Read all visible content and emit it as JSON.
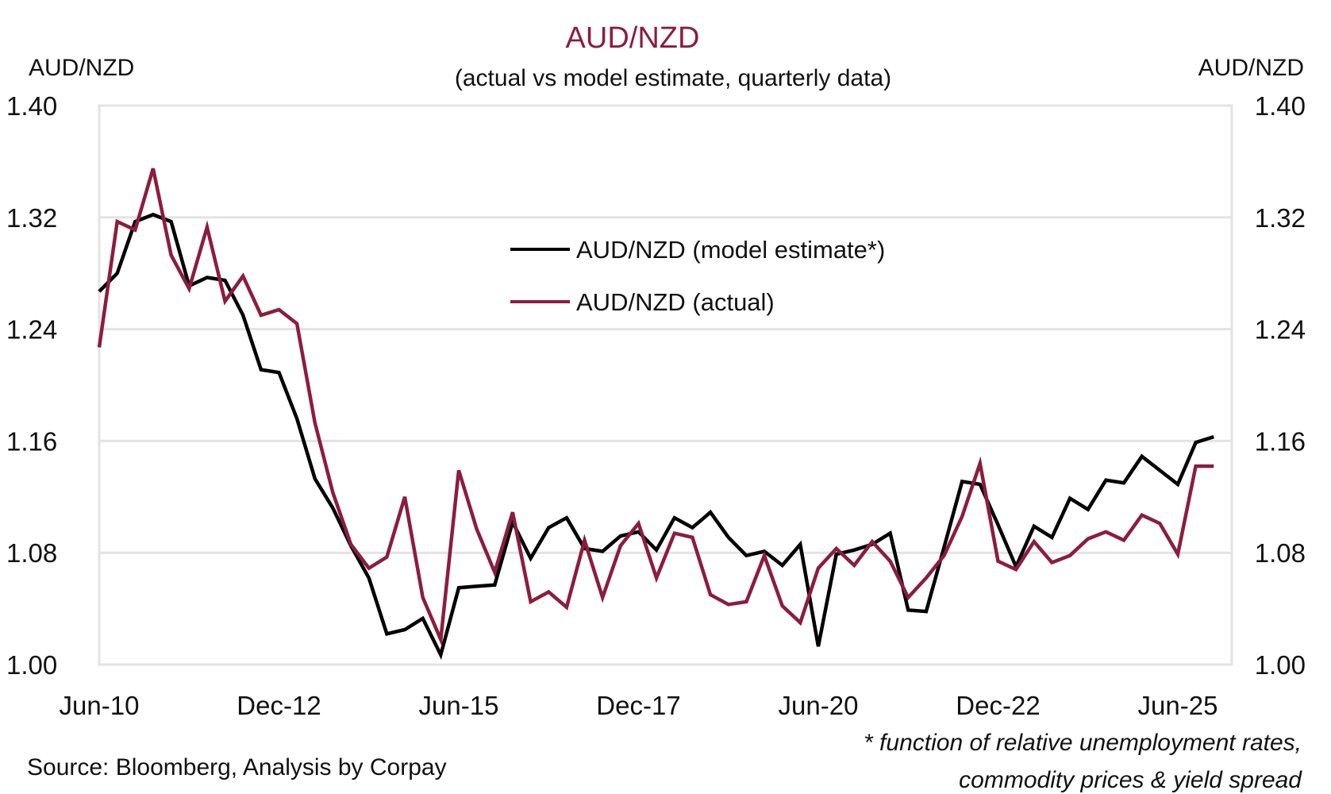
{
  "chart_data": {
    "type": "line",
    "title": "AUD/NZD",
    "subtitle": "(actual vs model estimate, quarterly data)",
    "ylabel_left": "AUD/NZD",
    "ylabel_right": "AUD/NZD",
    "ylim": [
      1.0,
      1.4
    ],
    "yticks": [
      "1.00",
      "1.08",
      "1.16",
      "1.24",
      "1.32",
      "1.40"
    ],
    "ytick_values": [
      1.0,
      1.08,
      1.16,
      1.24,
      1.32,
      1.4
    ],
    "x_start": "Jun-10",
    "x_end": "Dec-25",
    "x_frequency": "quarterly",
    "xticks": [
      {
        "label": "Jun-10",
        "index": 0
      },
      {
        "label": "Dec-12",
        "index": 10
      },
      {
        "label": "Jun-15",
        "index": 20
      },
      {
        "label": "Dec-17",
        "index": 30
      },
      {
        "label": "Jun-20",
        "index": 40
      },
      {
        "label": "Dec-22",
        "index": 50
      },
      {
        "label": "Jun-25",
        "index": 60
      }
    ],
    "grid": true,
    "legend_position": "upper-center",
    "series": [
      {
        "name": "AUD/NZD (model estimate*)",
        "color": "#000000",
        "values": [
          1.267,
          1.28,
          1.317,
          1.322,
          1.317,
          1.271,
          1.277,
          1.275,
          1.25,
          1.211,
          1.209,
          1.176,
          1.133,
          1.112,
          1.085,
          1.062,
          1.022,
          1.025,
          1.033,
          1.007,
          1.055,
          1.056,
          1.057,
          1.102,
          1.076,
          1.098,
          1.105,
          1.083,
          1.081,
          1.092,
          1.095,
          1.082,
          1.105,
          1.098,
          1.109,
          1.091,
          1.078,
          1.081,
          1.071,
          1.086,
          1.013,
          1.079,
          1.082,
          1.086,
          1.094,
          1.039,
          1.038,
          1.084,
          1.131,
          1.129,
          1.1,
          1.07,
          1.099,
          1.091,
          1.119,
          1.111,
          1.132,
          1.13,
          1.149,
          1.139,
          1.129,
          1.159,
          1.163
        ]
      },
      {
        "name": "AUD/NZD (actual)",
        "color": "#8c1c40",
        "values": [
          1.227,
          1.317,
          1.311,
          1.355,
          1.293,
          1.269,
          1.313,
          1.26,
          1.278,
          1.25,
          1.254,
          1.244,
          1.173,
          1.123,
          1.086,
          1.069,
          1.077,
          1.12,
          1.048,
          1.018,
          1.139,
          1.097,
          1.066,
          1.109,
          1.045,
          1.052,
          1.041,
          1.089,
          1.048,
          1.085,
          1.101,
          1.062,
          1.094,
          1.091,
          1.05,
          1.043,
          1.045,
          1.078,
          1.042,
          1.03,
          1.069,
          1.083,
          1.071,
          1.088,
          1.074,
          1.048,
          1.062,
          1.078,
          1.106,
          1.144,
          1.074,
          1.068,
          1.088,
          1.073,
          1.078,
          1.09,
          1.095,
          1.089,
          1.107,
          1.101,
          1.079,
          1.142,
          1.142
        ]
      }
    ],
    "source": "Source: Bloomberg, Analysis by Corpay",
    "footnote": [
      "* function of relative unemployment rates,",
      "commodity prices & yield spread"
    ]
  }
}
